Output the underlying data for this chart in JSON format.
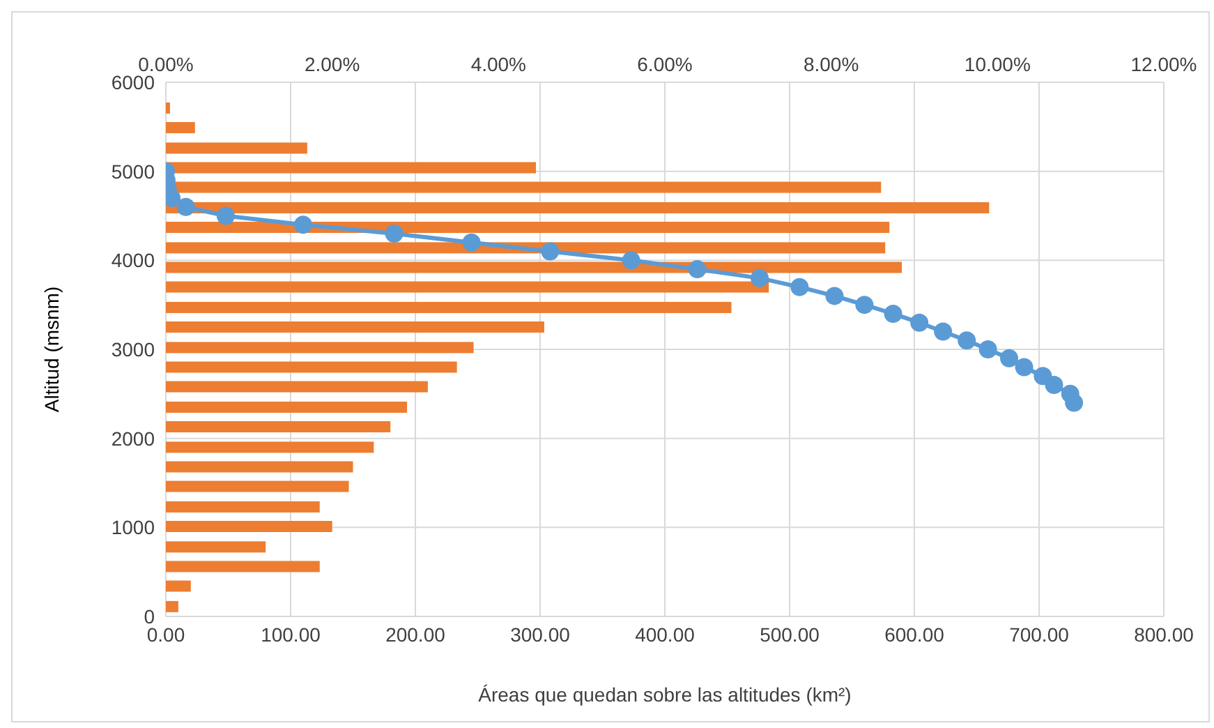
{
  "chart_data": {
    "type": "line",
    "orientation": "horizontal",
    "xlabel": "Áreas que quedan sobre las altitudes (km²)",
    "ylabel": "Altitud (msnm)",
    "xlim": [
      0,
      800
    ],
    "xticks": [
      {
        "value": 0,
        "label": "0.00"
      },
      {
        "value": 100,
        "label": "100.00"
      },
      {
        "value": 200,
        "label": "200.00"
      },
      {
        "value": 300,
        "label": "300.00"
      },
      {
        "value": 400,
        "label": "400.00"
      },
      {
        "value": 500,
        "label": "500.00"
      },
      {
        "value": 600,
        "label": "600.00"
      },
      {
        "value": 700,
        "label": "700.00"
      },
      {
        "value": 800,
        "label": "800.00"
      }
    ],
    "x2lim": [
      0,
      12
    ],
    "x2ticks": [
      {
        "value": 0,
        "label": "0.00%"
      },
      {
        "value": 2,
        "label": "2.00%"
      },
      {
        "value": 4,
        "label": "4.00%"
      },
      {
        "value": 6,
        "label": "6.00%"
      },
      {
        "value": 8,
        "label": "8.00%"
      },
      {
        "value": 10,
        "label": "10.00%"
      },
      {
        "value": 12,
        "label": "12.00%"
      }
    ],
    "ylim": [
      0,
      6000
    ],
    "yticks": [
      0,
      1000,
      2000,
      3000,
      4000,
      5000,
      6000
    ],
    "grid": true,
    "series": [
      {
        "type": "bar",
        "axis": "x2",
        "color": "#ed7d31",
        "x": [
          110,
          340,
          560,
          780,
          1010,
          1230,
          1460,
          1680,
          1900,
          2130,
          2350,
          2580,
          2800,
          3020,
          3250,
          3470,
          3700,
          3920,
          4140,
          4370,
          4590,
          4820,
          5040,
          5260,
          5490,
          5710
        ],
        "values": [
          0.15,
          0.3,
          1.85,
          1.2,
          2.0,
          1.85,
          2.2,
          2.25,
          2.5,
          2.7,
          2.9,
          3.15,
          3.5,
          3.7,
          4.55,
          6.8,
          7.25,
          8.85,
          8.65,
          8.7,
          9.9,
          8.6,
          4.45,
          1.7,
          0.35,
          0.05
        ]
      },
      {
        "color": "#5b9bd5",
        "marker": "circle",
        "x": [
          5000,
          4900,
          4800,
          4700,
          4600,
          4500,
          4400,
          4300,
          4200,
          4100,
          4000,
          3900,
          3800,
          3700,
          3600,
          3500,
          3400,
          3300,
          3200,
          3100,
          3000,
          2900,
          2800,
          2700,
          2600,
          2500,
          2400
        ],
        "values": [
          0,
          0.5,
          1.5,
          4.5,
          16,
          48,
          110,
          183,
          245,
          308,
          373,
          426,
          476,
          508,
          536,
          560,
          583,
          604,
          623,
          642,
          659,
          676,
          688,
          703,
          712,
          725,
          728
        ]
      }
    ]
  }
}
